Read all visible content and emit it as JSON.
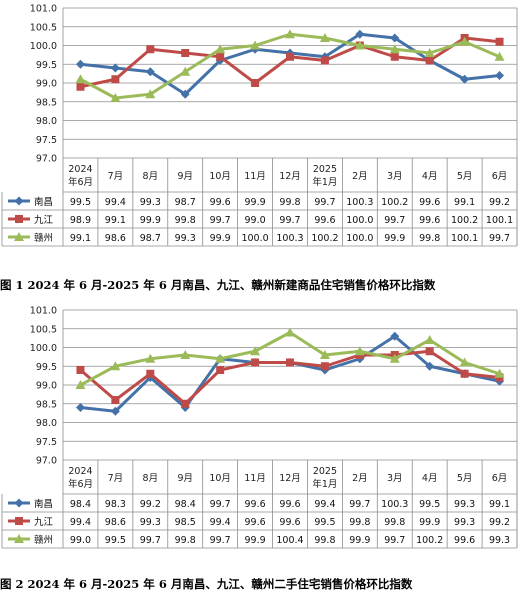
{
  "charts": [
    {
      "caption": "图 1  2024 年 6 月-2025 年 6 月南昌、九江、赣州新建商品住宅销售价格环比指数",
      "chart_data": {
        "type": "line",
        "categories": [
          "2024年6月",
          "7月",
          "8月",
          "9月",
          "10月",
          "11月",
          "12月",
          "2025年1月",
          "2月",
          "3月",
          "4月",
          "5月",
          "6月"
        ],
        "category_lines": [
          [
            "2024",
            "年6月"
          ],
          [
            "7月"
          ],
          [
            "8月"
          ],
          [
            "9月"
          ],
          [
            "10月"
          ],
          [
            "11月"
          ],
          [
            "12月"
          ],
          [
            "2025",
            "年1月"
          ],
          [
            "2月"
          ],
          [
            "3月"
          ],
          [
            "4月"
          ],
          [
            "5月"
          ],
          [
            "6月"
          ]
        ],
        "yticks": [
          "97.0",
          "97.5",
          "98.0",
          "98.5",
          "99.0",
          "99.5",
          "100.0",
          "100.5",
          "101.0"
        ],
        "ylim": [
          97.0,
          101.0
        ],
        "grid": true,
        "series": [
          {
            "name": "南昌",
            "color": "#4472A8",
            "marker": "diamond",
            "values": [
              99.5,
              99.4,
              99.3,
              98.7,
              99.6,
              99.9,
              99.8,
              99.7,
              100.3,
              100.2,
              99.6,
              99.1,
              99.2
            ],
            "labels": [
              "99.5",
              "99.4",
              "99.3",
              "98.7",
              "99.6",
              "99.9",
              "99.8",
              "99.7",
              "100.3",
              "100.2",
              "99.6",
              "99.1",
              "99.2"
            ]
          },
          {
            "name": "九江",
            "color": "#BE4B48",
            "marker": "square",
            "values": [
              98.9,
              99.1,
              99.9,
              99.8,
              99.7,
              99.0,
              99.7,
              99.6,
              100.0,
              99.7,
              99.6,
              100.2,
              100.1
            ],
            "labels": [
              "98.9",
              "99.1",
              "99.9",
              "99.8",
              "99.7",
              "99.0",
              "99.7",
              "99.6",
              "100.0",
              "99.7",
              "99.6",
              "100.2",
              "100.1"
            ]
          },
          {
            "name": "赣州",
            "color": "#9BBB59",
            "marker": "triangle",
            "values": [
              99.1,
              98.6,
              98.7,
              99.3,
              99.9,
              100.0,
              100.3,
              100.2,
              100.0,
              99.9,
              99.8,
              100.1,
              99.7
            ],
            "labels": [
              "99.1",
              "98.6",
              "98.7",
              "99.3",
              "99.9",
              "100.0",
              "100.3",
              "100.2",
              "100.0",
              "99.9",
              "99.8",
              "100.1",
              "99.7"
            ]
          }
        ]
      }
    },
    {
      "caption": "图 2  2024 年 6 月-2025 年 6 月南昌、九江、赣州二手住宅销售价格环比指数",
      "chart_data": {
        "type": "line",
        "categories": [
          "2024年6月",
          "7月",
          "8月",
          "9月",
          "10月",
          "11月",
          "12月",
          "2025年1月",
          "2月",
          "3月",
          "4月",
          "5月",
          "6月"
        ],
        "category_lines": [
          [
            "2024",
            "年6月"
          ],
          [
            "7月"
          ],
          [
            "8月"
          ],
          [
            "9月"
          ],
          [
            "10月"
          ],
          [
            "11月"
          ],
          [
            "12月"
          ],
          [
            "2025",
            "年1月"
          ],
          [
            "2月"
          ],
          [
            "3月"
          ],
          [
            "4月"
          ],
          [
            "5月"
          ],
          [
            "6月"
          ]
        ],
        "yticks": [
          "97.0",
          "97.5",
          "98.0",
          "98.5",
          "99.0",
          "99.5",
          "100.0",
          "100.5",
          "101.0"
        ],
        "ylim": [
          97.0,
          101.0
        ],
        "grid": true,
        "series": [
          {
            "name": "南昌",
            "color": "#4472A8",
            "marker": "diamond",
            "values": [
              98.4,
              98.3,
              99.2,
              98.4,
              99.7,
              99.6,
              99.6,
              99.4,
              99.7,
              100.3,
              99.5,
              99.3,
              99.1
            ],
            "labels": [
              "98.4",
              "98.3",
              "99.2",
              "98.4",
              "99.7",
              "99.6",
              "99.6",
              "99.4",
              "99.7",
              "100.3",
              "99.5",
              "99.3",
              "99.1"
            ]
          },
          {
            "name": "九江",
            "color": "#BE4B48",
            "marker": "square",
            "values": [
              99.4,
              98.6,
              99.3,
              98.5,
              99.4,
              99.6,
              99.6,
              99.5,
              99.8,
              99.8,
              99.9,
              99.3,
              99.2
            ],
            "labels": [
              "99.4",
              "98.6",
              "99.3",
              "98.5",
              "99.4",
              "99.6",
              "99.6",
              "99.5",
              "99.8",
              "99.8",
              "99.9",
              "99.3",
              "99.2"
            ]
          },
          {
            "name": "赣州",
            "color": "#9BBB59",
            "marker": "triangle",
            "values": [
              99.0,
              99.5,
              99.7,
              99.8,
              99.7,
              99.9,
              100.4,
              99.8,
              99.9,
              99.7,
              100.2,
              99.6,
              99.3
            ],
            "labels": [
              "99.0",
              "99.5",
              "99.7",
              "99.8",
              "99.7",
              "99.9",
              "100.4",
              "99.8",
              "99.9",
              "99.7",
              "100.2",
              "99.6",
              "99.3"
            ]
          }
        ]
      }
    }
  ]
}
